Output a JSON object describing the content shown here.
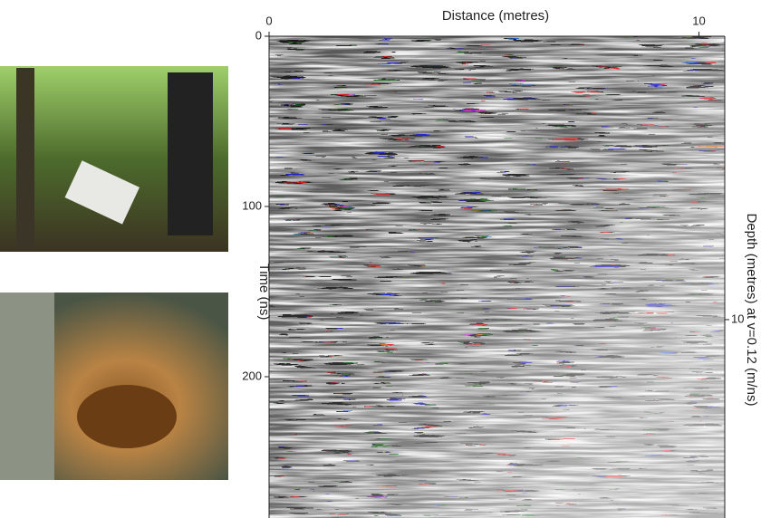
{
  "chart_data": {
    "type": "radargram",
    "xlabel": "Distance (metres)",
    "xlim": [
      0,
      10.6
    ],
    "xticks": [
      0,
      10
    ],
    "ylabel": "Time (ns)",
    "ylim": [
      0,
      283
    ],
    "yticks": [
      0,
      100,
      200
    ],
    "y2label": "Depth (metres) at v=0.12 (m/ns)",
    "y2lim": [
      0,
      17
    ],
    "y2ticks": [
      10
    ]
  }
}
